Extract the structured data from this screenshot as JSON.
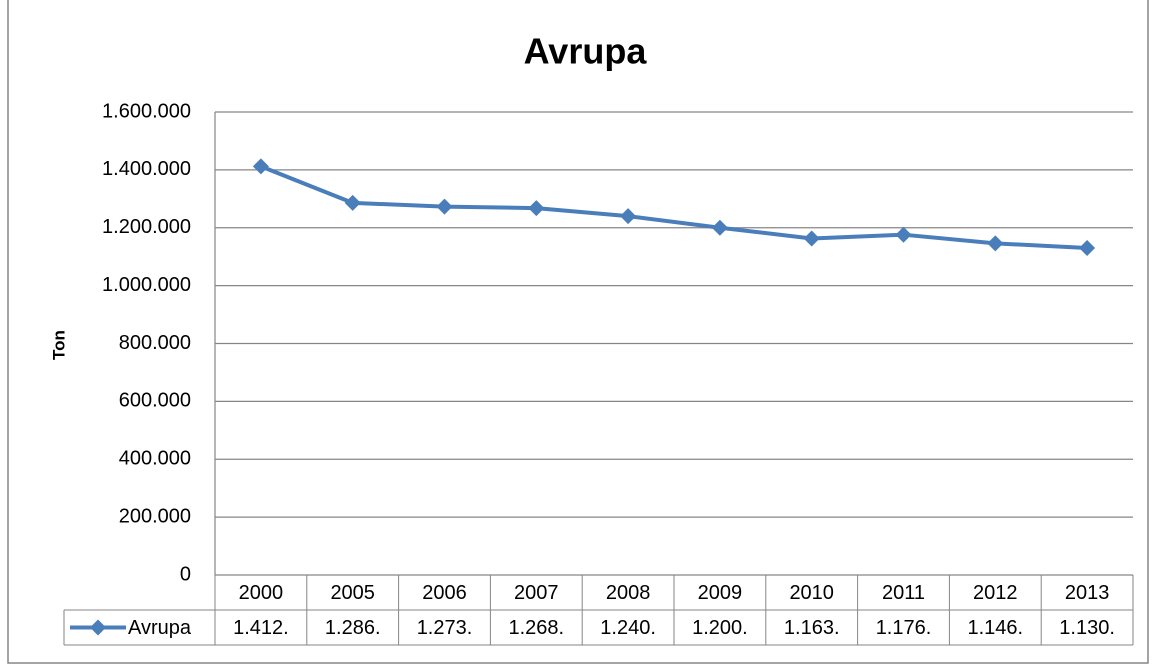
{
  "chart_data": {
    "type": "line",
    "title": "Avrupa",
    "y_label": "Ton",
    "categories": [
      "2000",
      "2005",
      "2006",
      "2007",
      "2008",
      "2009",
      "2010",
      "2011",
      "2012",
      "2013"
    ],
    "series": [
      {
        "name": "Avrupa",
        "color": "#4a7ebb",
        "values": [
          1412000,
          1286000,
          1273000,
          1268000,
          1240000,
          1200000,
          1163000,
          1176000,
          1146000,
          1130000
        ],
        "value_labels": [
          "1.412.",
          "1.286.",
          "1.273.",
          "1.268.",
          "1.240.",
          "1.200.",
          "1.163.",
          "1.176.",
          "1.146.",
          "1.130."
        ]
      }
    ],
    "ylim": [
      0,
      1600000
    ],
    "yticks": [
      0,
      {
        "value": 200000,
        "label": "200.000"
      },
      {
        "value": 400000,
        "label": "400.000"
      },
      {
        "value": 600000,
        "label": "600.000"
      },
      {
        "value": 800000,
        "label": "800.000"
      },
      {
        "value": 1000000,
        "label": "1.000.000"
      },
      {
        "value": 1200000,
        "label": "1.200.000"
      },
      {
        "value": 1400000,
        "label": "1.400.000"
      },
      {
        "value": 1600000,
        "label": "1.600.000"
      }
    ],
    "grid": true,
    "legend": "data-table"
  }
}
